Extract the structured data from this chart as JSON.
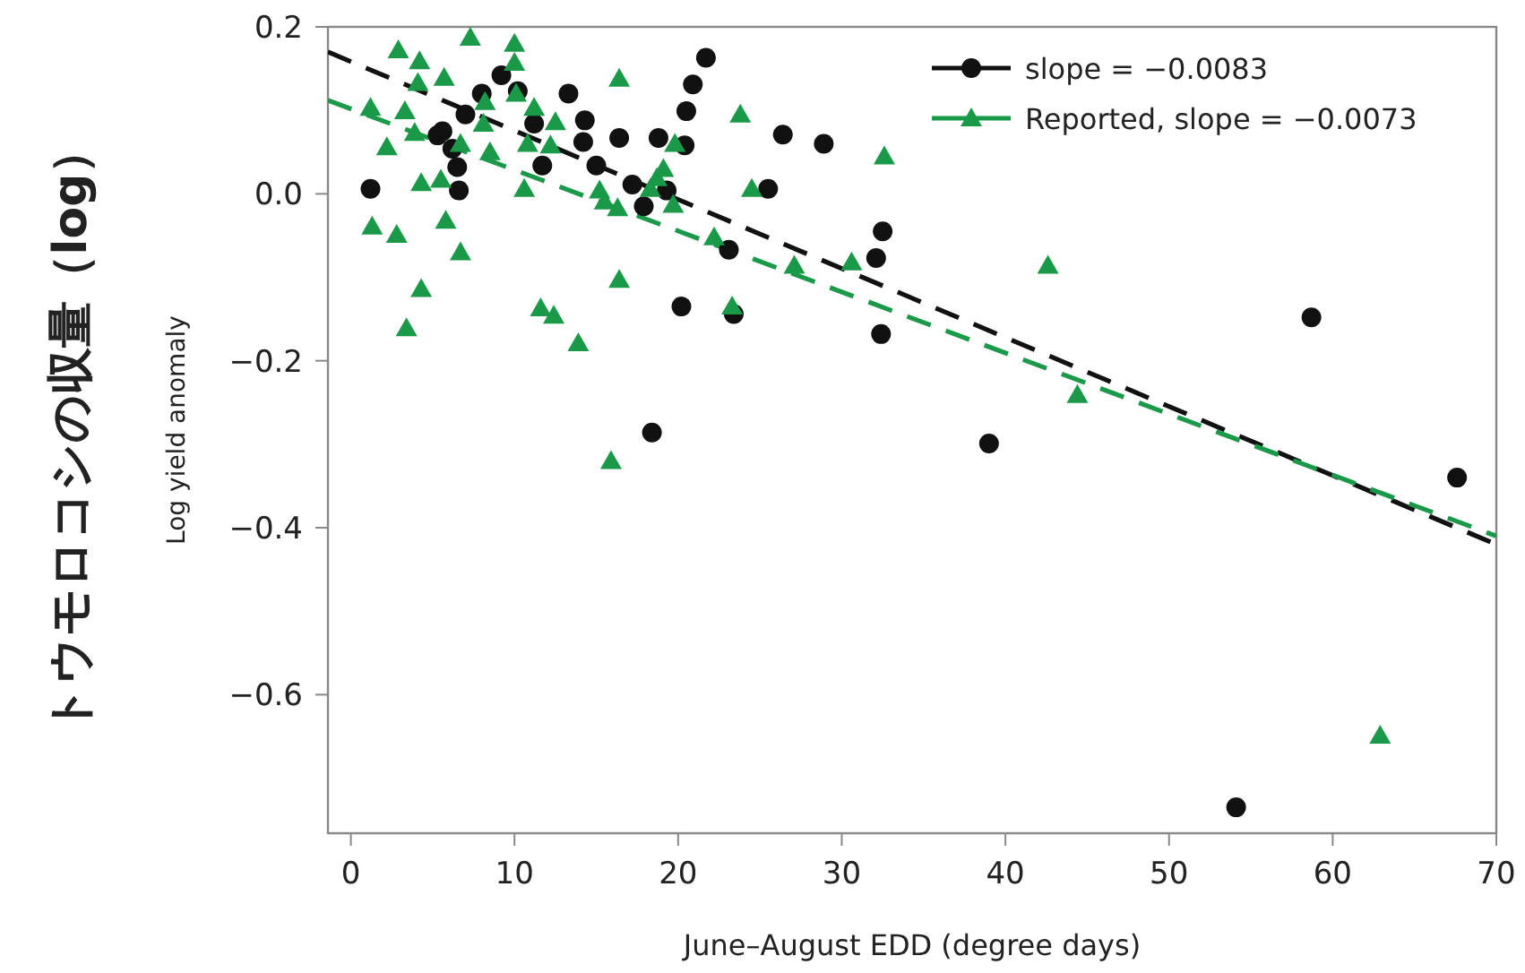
{
  "chart_data": {
    "type": "scatter",
    "xlabel": "June–August EDD (degree days)",
    "ylabel": "Log yield anomaly",
    "annotations": [
      "トウモロコシの収量（log）"
    ],
    "xlim": [
      -1.4,
      70
    ],
    "ylim": [
      -0.766,
      0.2
    ],
    "xticks": [
      0,
      10,
      20,
      30,
      40,
      50,
      60,
      70
    ],
    "yticks": [
      {
        "value": 0.2,
        "label": "0.2"
      },
      {
        "value": 0,
        "label": "0.0"
      },
      {
        "value": -0.2,
        "label": "−0.2"
      },
      {
        "value": -0.4,
        "label": "−0.4"
      },
      {
        "value": -0.6,
        "label": "−0.6"
      }
    ],
    "grid": false,
    "legend": "top right",
    "series": [
      {
        "name": "slope = −0.0083",
        "color": "#111111",
        "marker": "circle",
        "x": [
          1.2,
          9.2,
          8.0,
          7.0,
          5.6,
          5.3,
          6.2,
          6.5,
          6.6,
          10.2,
          11.2,
          11.7,
          13.3,
          14.3,
          14.2,
          16.4,
          15.0,
          21.7,
          20.9,
          20.5,
          18.8,
          20.4,
          26.4,
          28.9,
          17.2,
          17.9,
          19.3,
          25.5,
          32.5,
          32.1,
          23.1,
          20.2,
          23.4,
          32.4,
          18.4,
          39.0,
          58.7,
          67.6,
          54.1
        ],
        "values": [
          0.006,
          0.142,
          0.12,
          0.095,
          0.075,
          0.07,
          0.054,
          0.032,
          0.004,
          0.123,
          0.084,
          0.034,
          0.12,
          0.088,
          0.062,
          0.067,
          0.034,
          0.163,
          0.131,
          0.099,
          0.067,
          0.058,
          0.071,
          0.06,
          0.011,
          -0.015,
          0.004,
          0.006,
          -0.045,
          -0.077,
          -0.067,
          -0.135,
          -0.144,
          -0.168,
          -0.286,
          -0.299,
          -0.148,
          -0.34,
          -0.735
        ]
      },
      {
        "name": "Reported, slope = −0.0073",
        "color": "#1a9a48",
        "marker": "triangle",
        "x": [
          2.9,
          7.3,
          10.0,
          4.2,
          10.0,
          4.1,
          5.7,
          1.2,
          3.3,
          8.2,
          10.1,
          11.2,
          12.5,
          8.1,
          3.9,
          2.2,
          6.7,
          8.5,
          10.8,
          12.2,
          4.3,
          5.5,
          10.6,
          15.2,
          15.5,
          16.3,
          1.3,
          2.8,
          5.8,
          6.7,
          4.3,
          3.4,
          11.6,
          12.4,
          13.9,
          16.4,
          16.4,
          23.8,
          19.8,
          19.1,
          18.7,
          18.3,
          19.7,
          24.5,
          32.6,
          22.2,
          27.1,
          30.6,
          23.3,
          15.9,
          42.6,
          44.4,
          62.9
        ],
        "values": [
          0.172,
          0.187,
          0.18,
          0.159,
          0.157,
          0.133,
          0.139,
          0.103,
          0.099,
          0.11,
          0.12,
          0.103,
          0.086,
          0.084,
          0.073,
          0.056,
          0.06,
          0.05,
          0.06,
          0.058,
          0.013,
          0.017,
          0.006,
          0.004,
          -0.009,
          -0.017,
          -0.039,
          -0.049,
          -0.032,
          -0.07,
          -0.114,
          -0.161,
          -0.137,
          -0.146,
          -0.179,
          -0.103,
          0.138,
          0.095,
          0.06,
          0.03,
          0.019,
          0.006,
          -0.013,
          0.006,
          0.045,
          -0.052,
          -0.086,
          -0.082,
          -0.135,
          -0.32,
          -0.086,
          -0.241,
          -0.649
        ]
      },
      {
        "type": "line",
        "color": "#111111",
        "line_style": "dashed",
        "x": [
          -1.4,
          70
        ],
        "values": [
          0.17,
          -0.42
        ]
      },
      {
        "type": "line",
        "color": "#1a9a48",
        "line_style": "dashed",
        "x": [
          -1.4,
          70
        ],
        "values": [
          0.112,
          -0.41
        ]
      }
    ]
  }
}
